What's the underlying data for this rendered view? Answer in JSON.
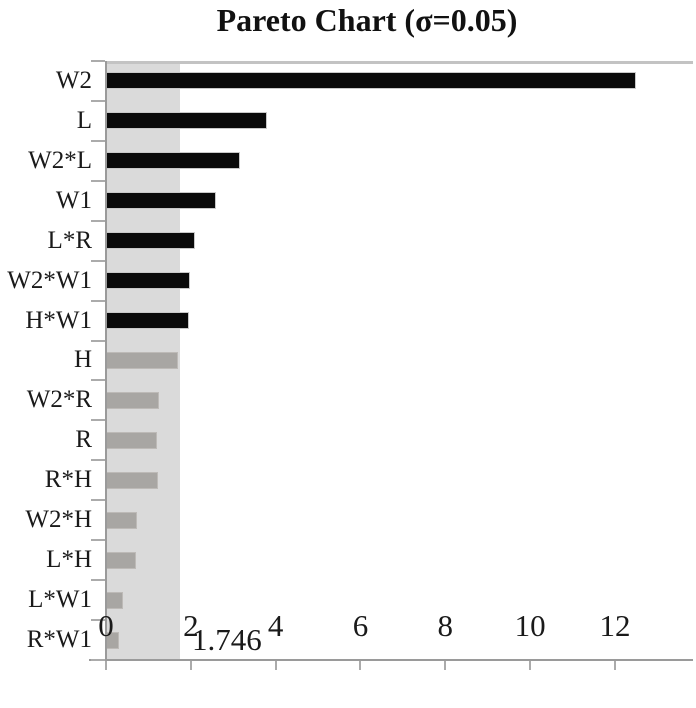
{
  "chart_data": {
    "type": "bar",
    "orientation": "horizontal",
    "title": "Pareto Chart (σ=0.05)",
    "categories": [
      "W2",
      "L",
      "W2*L",
      "W1",
      "L*R",
      "W2*W1",
      "H*W1",
      "H",
      "W2*R",
      "R",
      "R*H",
      "W2*H",
      "L*H",
      "L*W1",
      "R*W1"
    ],
    "values": [
      12.5,
      3.8,
      3.17,
      2.6,
      2.1,
      1.98,
      1.95,
      1.7,
      1.25,
      1.2,
      1.22,
      0.72,
      0.7,
      0.4,
      0.3
    ],
    "significant": [
      true,
      true,
      true,
      true,
      true,
      true,
      true,
      false,
      false,
      false,
      false,
      false,
      false,
      false,
      false
    ],
    "threshold": 1.746,
    "threshold_label": "1.746",
    "xlim": [
      0,
      13.84
    ],
    "x_tick_labels": [
      "0",
      "2",
      "4",
      "6",
      "8",
      "10",
      "12"
    ],
    "x_tick_values": [
      0,
      2,
      4,
      6,
      8,
      10,
      12
    ],
    "grid": false,
    "legend": "none",
    "colors": {
      "significant_bar": "#0a0a0a",
      "nonsignificant_bar": "#a8a6a3",
      "threshold_band": "#dadada",
      "axis": "#9a9a9a",
      "tick": "#ababab",
      "top_border": "#c3c3c3",
      "text": "#111111"
    }
  }
}
